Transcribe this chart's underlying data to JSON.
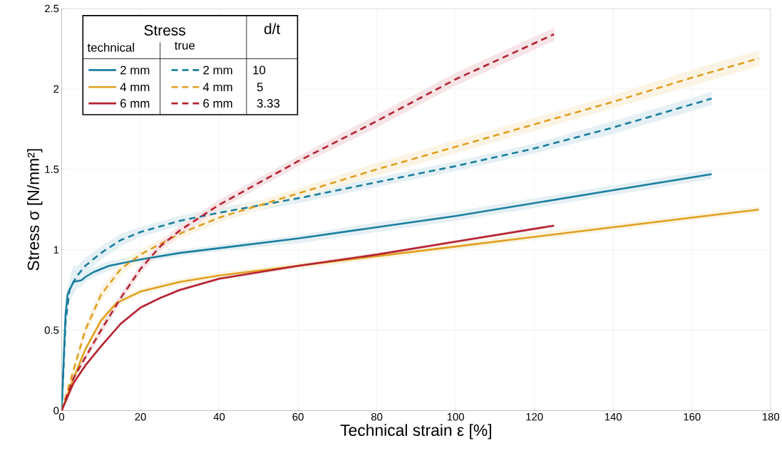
{
  "chart_data": {
    "type": "line",
    "xlabel": "Technical strain ε [%]",
    "ylabel": "Stress σ [N/mm²]",
    "legend_title": "Stress",
    "annotations": [
      "technical",
      "true",
      "d/t",
      "10",
      "5",
      "3.33"
    ],
    "xlim": [
      0,
      180
    ],
    "ylim": [
      0,
      2.5
    ],
    "xticks": [
      0,
      20,
      40,
      60,
      80,
      100,
      120,
      140,
      160,
      180
    ],
    "yticks": [
      0,
      0.5,
      1,
      1.5,
      2,
      2.5
    ],
    "grid": true,
    "legend": "top left",
    "marker": "none",
    "series": [
      {
        "name": "2 mm",
        "color": "#1a7fa0",
        "line_style": "solid",
        "x": [
          0,
          0.5,
          1,
          1.5,
          2,
          3,
          5,
          6,
          8,
          12,
          16,
          20,
          30,
          40,
          60,
          80,
          100,
          120,
          140,
          165
        ],
        "values": [
          0,
          0.3,
          0.6,
          0.72,
          0.75,
          0.8,
          0.81,
          0.83,
          0.86,
          0.9,
          0.92,
          0.94,
          0.98,
          1.01,
          1.07,
          1.14,
          1.21,
          1.29,
          1.37,
          1.47
        ],
        "lower": [
          0,
          0.27,
          0.56,
          0.67,
          0.7,
          0.75,
          0.77,
          0.8,
          0.83,
          0.87,
          0.9,
          0.92,
          0.96,
          0.99,
          1.04,
          1.11,
          1.18,
          1.26,
          1.34,
          1.44
        ],
        "upper": [
          0,
          0.33,
          0.64,
          0.77,
          0.8,
          0.85,
          0.85,
          0.86,
          0.89,
          0.93,
          0.95,
          0.96,
          1.0,
          1.03,
          1.09,
          1.17,
          1.24,
          1.32,
          1.4,
          1.5
        ]
      },
      {
        "name": "4 mm",
        "color": "#e0a020",
        "line_style": "solid",
        "x": [
          0,
          3,
          6,
          10,
          14,
          20,
          30,
          40,
          60,
          80,
          100,
          120,
          140,
          160,
          177
        ],
        "values": [
          0,
          0.2,
          0.38,
          0.56,
          0.67,
          0.74,
          0.8,
          0.84,
          0.9,
          0.96,
          1.02,
          1.08,
          1.14,
          1.2,
          1.25
        ],
        "lower": [
          0,
          0.18,
          0.36,
          0.54,
          0.65,
          0.72,
          0.78,
          0.82,
          0.88,
          0.94,
          1.0,
          1.06,
          1.12,
          1.18,
          1.23
        ],
        "upper": [
          0,
          0.22,
          0.4,
          0.58,
          0.69,
          0.76,
          0.82,
          0.86,
          0.92,
          0.98,
          1.04,
          1.11,
          1.16,
          1.22,
          1.27
        ]
      },
      {
        "name": "6 mm",
        "color": "#b52230",
        "line_style": "solid",
        "x": [
          0,
          3,
          6,
          10,
          15,
          20,
          25,
          30,
          40,
          60,
          80,
          100,
          125
        ],
        "values": [
          0,
          0.17,
          0.28,
          0.4,
          0.54,
          0.64,
          0.7,
          0.75,
          0.82,
          0.9,
          0.97,
          1.05,
          1.15
        ],
        "lower": [
          0,
          0.16,
          0.27,
          0.39,
          0.53,
          0.63,
          0.69,
          0.74,
          0.81,
          0.89,
          0.96,
          1.04,
          1.14
        ],
        "upper": [
          0,
          0.18,
          0.29,
          0.41,
          0.55,
          0.65,
          0.71,
          0.76,
          0.83,
          0.91,
          0.98,
          1.06,
          1.16
        ]
      },
      {
        "name": "2 mm",
        "color": "#1a7fa0",
        "line_style": "dashed",
        "x": [
          0,
          1,
          2,
          3,
          4,
          6,
          10,
          15,
          20,
          30,
          40,
          60,
          80,
          100,
          120,
          140,
          165
        ],
        "values": [
          0,
          0.55,
          0.75,
          0.8,
          0.84,
          0.9,
          0.98,
          1.06,
          1.11,
          1.18,
          1.23,
          1.32,
          1.42,
          1.52,
          1.63,
          1.76,
          1.94
        ],
        "lower": [
          0,
          0.5,
          0.68,
          0.72,
          0.77,
          0.85,
          0.94,
          1.02,
          1.08,
          1.15,
          1.2,
          1.29,
          1.39,
          1.49,
          1.6,
          1.72,
          1.9
        ],
        "upper": [
          0,
          0.6,
          0.82,
          0.9,
          0.9,
          0.95,
          1.02,
          1.1,
          1.14,
          1.21,
          1.26,
          1.35,
          1.45,
          1.55,
          1.66,
          1.8,
          1.98
        ]
      },
      {
        "name": "4 mm",
        "color": "#e0a020",
        "line_style": "dashed",
        "x": [
          0,
          3,
          6,
          10,
          15,
          20,
          30,
          40,
          60,
          80,
          100,
          120,
          140,
          160,
          177
        ],
        "values": [
          0,
          0.25,
          0.5,
          0.72,
          0.88,
          0.97,
          1.1,
          1.2,
          1.35,
          1.5,
          1.64,
          1.78,
          1.92,
          2.07,
          2.19
        ],
        "lower": [
          0,
          0.22,
          0.46,
          0.68,
          0.84,
          0.94,
          1.07,
          1.17,
          1.32,
          1.46,
          1.6,
          1.74,
          1.88,
          2.02,
          2.14
        ],
        "upper": [
          0,
          0.28,
          0.54,
          0.76,
          0.92,
          1.0,
          1.13,
          1.23,
          1.38,
          1.54,
          1.68,
          1.82,
          1.96,
          2.12,
          2.24
        ]
      },
      {
        "name": "6 mm",
        "color": "#b52230",
        "line_style": "dashed",
        "x": [
          0,
          3,
          6,
          10,
          15,
          20,
          25,
          30,
          35,
          40,
          60,
          80,
          100,
          125
        ],
        "values": [
          0,
          0.2,
          0.33,
          0.5,
          0.7,
          0.88,
          1.02,
          1.12,
          1.2,
          1.28,
          1.55,
          1.8,
          2.06,
          2.34
        ],
        "lower": [
          0,
          0.18,
          0.31,
          0.47,
          0.67,
          0.85,
          0.99,
          1.09,
          1.17,
          1.25,
          1.52,
          1.76,
          2.02,
          2.3
        ],
        "upper": [
          0,
          0.22,
          0.35,
          0.53,
          0.73,
          0.91,
          1.05,
          1.15,
          1.23,
          1.31,
          1.58,
          1.84,
          2.1,
          2.38
        ]
      }
    ]
  }
}
